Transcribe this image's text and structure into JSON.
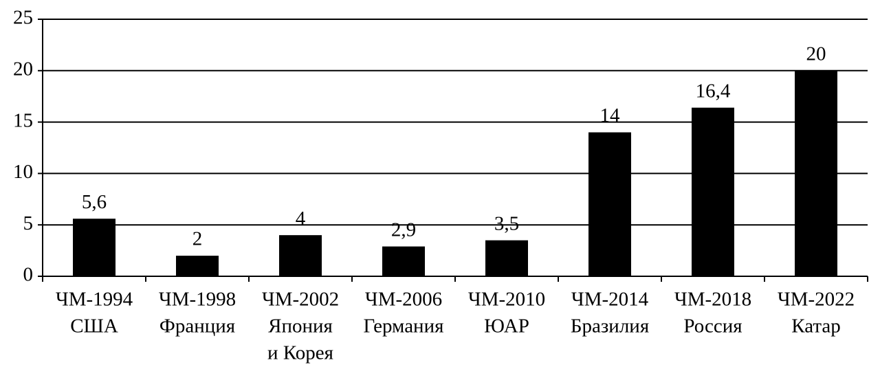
{
  "chart_data": {
    "type": "bar",
    "categories": [
      [
        "ЧМ-1994",
        "США"
      ],
      [
        "ЧМ-1998",
        "Франция"
      ],
      [
        "ЧМ-2002",
        "Япония",
        "и Корея"
      ],
      [
        "ЧМ-2006",
        "Германия"
      ],
      [
        "ЧМ-2010",
        "ЮАР"
      ],
      [
        "ЧМ-2014",
        "Бразилия"
      ],
      [
        "ЧМ-2018",
        "Россия"
      ],
      [
        "ЧМ-2022",
        "Катар"
      ]
    ],
    "values": [
      5.6,
      2,
      4,
      2.9,
      3.5,
      14,
      16.4,
      20
    ],
    "value_labels": [
      "5,6",
      "2",
      "4",
      "2,9",
      "3,5",
      "14",
      "16,4",
      "20"
    ],
    "color": "#000000",
    "ylim": [
      0,
      25
    ],
    "yticks": [
      0,
      5,
      10,
      15,
      20,
      25
    ],
    "grid": true
  }
}
